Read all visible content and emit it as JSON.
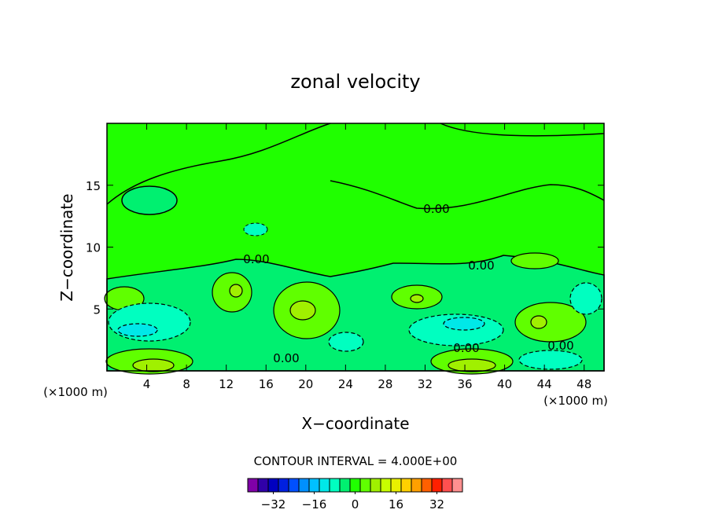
{
  "chart_data": {
    "type": "contour",
    "title": "zonal velocity",
    "xlabel": "X−coordinate",
    "ylabel": "Z−coordinate",
    "xunit": "(×1000 m)",
    "yunit": "(×1000 m)",
    "xlim": [
      0,
      50
    ],
    "ylim": [
      0,
      20
    ],
    "xticks": [
      4,
      8,
      12,
      16,
      20,
      24,
      28,
      32,
      36,
      40,
      44,
      48
    ],
    "yticks": [
      5,
      10,
      15
    ],
    "contour_labels": [
      "0.00",
      "0.00",
      "0.00",
      "0.00",
      "0.00",
      "0.00"
    ],
    "interval_text": "CONTOUR INTERVAL = 4.000E+00",
    "colorbar": {
      "levels": [
        -40,
        -36,
        -32,
        -28,
        -24,
        -20,
        -16,
        -12,
        -8,
        -4,
        0,
        4,
        8,
        12,
        16,
        20,
        24,
        28,
        32,
        36,
        40
      ],
      "colors": [
        "#8000a8",
        "#3000a8",
        "#0000c0",
        "#0020e0",
        "#0050ff",
        "#0090ff",
        "#00c0ff",
        "#00e8e8",
        "#00ffc0",
        "#00f070",
        "#20ff00",
        "#60ff00",
        "#a0f000",
        "#c8ff00",
        "#e8f000",
        "#ffd000",
        "#ffa000",
        "#ff6000",
        "#ff2000",
        "#ff5050",
        "#ff9090"
      ],
      "ticks": [
        {
          "value": -32,
          "label": "−32"
        },
        {
          "value": -16,
          "label": "−16"
        },
        0,
        16,
        32
      ]
    }
  }
}
